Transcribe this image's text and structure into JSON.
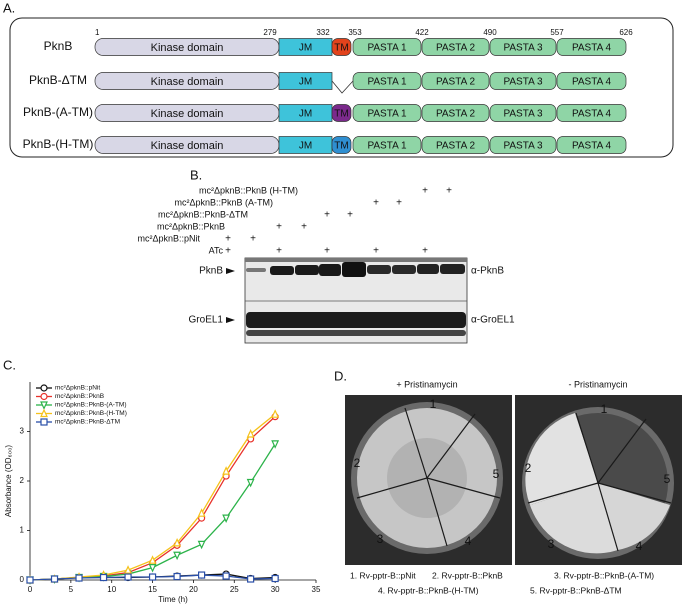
{
  "panel_a": {
    "label": "A.",
    "positions": [
      1,
      279,
      332,
      353,
      422,
      490,
      557,
      626
    ],
    "constructs": [
      {
        "name": "PknB",
        "domains": [
          "Kinase domain",
          "JM",
          "TM",
          "PASTA 1",
          "PASTA 2",
          "PASTA 3",
          "PASTA 4"
        ],
        "tm_color": "#e2431c"
      },
      {
        "name": "PknB-ΔTM",
        "domains": [
          "Kinase domain",
          "JM",
          "PASTA 1",
          "PASTA 2",
          "PASTA 3",
          "PASTA 4"
        ]
      },
      {
        "name": "PknB-(A-TM)",
        "domains": [
          "Kinase domain",
          "JM",
          "TM",
          "PASTA 1",
          "PASTA 2",
          "PASTA 3",
          "PASTA 4"
        ],
        "tm_color": "#7b2a8c"
      },
      {
        "name": "PknB-(H-TM)",
        "domains": [
          "Kinase domain",
          "JM",
          "TM",
          "PASTA 1",
          "PASTA 2",
          "PASTA 3",
          "PASTA 4"
        ],
        "tm_color": "#2f8fd1"
      }
    ]
  },
  "panel_b": {
    "label": "B.",
    "rows": [
      {
        "name": "mc²ΔpknB::PknB (H-TM)",
        "cells": [
          null,
          null,
          null,
          null,
          null,
          null,
          null,
          null,
          "+",
          "+"
        ]
      },
      {
        "name": "mc²ΔpknB::PknB (A-TM)",
        "cells": [
          null,
          null,
          null,
          null,
          null,
          null,
          "+",
          "+",
          null,
          null
        ]
      },
      {
        "name": "mc²ΔpknB::PknB-ΔTM",
        "cells": [
          null,
          null,
          null,
          null,
          "+",
          "+",
          null,
          null,
          null,
          null
        ]
      },
      {
        "name": "mc²ΔpknB::PknB",
        "cells": [
          null,
          null,
          "+",
          "+",
          null,
          null,
          null,
          null,
          null,
          null
        ]
      },
      {
        "name": "mc²ΔpknB::pNit",
        "cells": [
          "+",
          "+",
          null,
          null,
          null,
          null,
          null,
          null,
          null,
          null
        ]
      },
      {
        "name": "ATc",
        "cells": [
          "+",
          null,
          "+",
          null,
          "+",
          null,
          "+",
          null,
          "+",
          null
        ]
      }
    ],
    "bands": [
      "PknB",
      "GroEL1"
    ],
    "antibodies": [
      "α-PknB",
      "α-GroEL1"
    ]
  },
  "chart_data": {
    "type": "line",
    "label": "C.",
    "x_label": "Time (h)",
    "y_label": "Absorbance (OD₆₀₀)",
    "x": [
      0,
      3,
      6,
      9,
      12,
      15,
      18,
      21,
      24,
      27,
      30
    ],
    "xlim": [
      0,
      35
    ],
    "xticks": [
      0,
      5,
      10,
      15,
      20,
      25,
      30,
      35
    ],
    "ylim": [
      0,
      4
    ],
    "yticks": [
      0,
      1,
      2,
      3
    ],
    "series": [
      {
        "name": "mc²ΔpknB::pNit",
        "color": "#111111",
        "marker": "circle",
        "values": [
          0,
          0.02,
          0.05,
          0.05,
          0.05,
          0.06,
          0.08,
          0.1,
          0.12,
          0.03,
          0.05
        ]
      },
      {
        "name": "mc²ΔpknB::PknB",
        "color": "#e8322b",
        "marker": "circle",
        "values": [
          0,
          0.02,
          0.05,
          0.08,
          0.15,
          0.35,
          0.7,
          1.25,
          2.1,
          2.85,
          3.3
        ]
      },
      {
        "name": "mc²ΔpknB::PknB-(A-TM)",
        "color": "#2cb34a",
        "marker": "tri-down",
        "values": [
          0,
          0.02,
          0.05,
          0.07,
          0.12,
          0.25,
          0.5,
          0.72,
          1.25,
          1.97,
          2.75
        ]
      },
      {
        "name": "mc²ΔpknB::PknB-(H-TM)",
        "color": "#f5c21b",
        "marker": "tri-up",
        "values": [
          0,
          0.02,
          0.06,
          0.1,
          0.2,
          0.4,
          0.75,
          1.35,
          2.2,
          2.95,
          3.35
        ]
      },
      {
        "name": "mc²ΔpknB::PknB-ΔTM",
        "color": "#2a4fa8",
        "marker": "square",
        "values": [
          0,
          0.02,
          0.04,
          0.05,
          0.06,
          0.06,
          0.07,
          0.1,
          0.08,
          0.02,
          0.03
        ]
      }
    ]
  },
  "panel_d": {
    "label": "D.",
    "plates": [
      "+ Pristinamycin",
      "- Pristinamycin"
    ],
    "sectors": [
      "1",
      "2",
      "3",
      "4",
      "5"
    ],
    "strains": [
      "1. Rv-pptr-B::pNit",
      "2. Rv-pptr-B::PknB",
      "3. Rv-pptr-B::PknB-(A-TM)",
      "4. Rv-pptr-B::PknB-(H-TM)",
      "5. Rv-pptr-B::PknB-ΔTM"
    ]
  }
}
